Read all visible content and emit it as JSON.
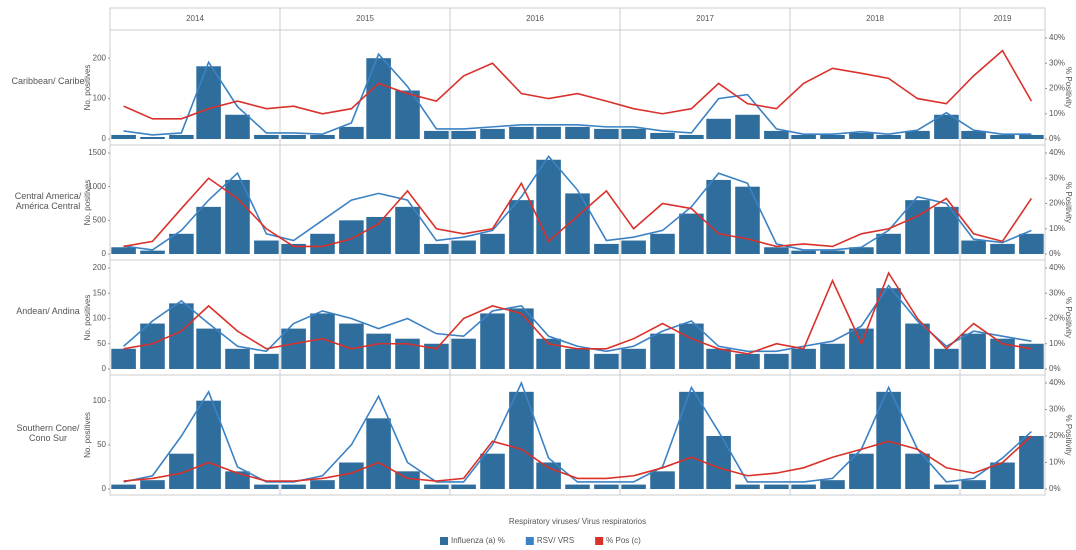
{
  "chart_data": [
    {
      "type": "combo",
      "title": "Caribbean/ Caribe",
      "ylabel": "No. positives",
      "y2label": "% Positivity",
      "xlim": [
        2014,
        2019.5
      ],
      "xticks": [
        2014,
        2015,
        2016,
        2017,
        2018,
        2019
      ],
      "x": [
        2014.08,
        2014.25,
        2014.42,
        2014.58,
        2014.75,
        2014.92,
        2015.08,
        2015.25,
        2015.42,
        2015.58,
        2015.75,
        2015.92,
        2016.08,
        2016.25,
        2016.42,
        2016.58,
        2016.75,
        2016.92,
        2017.08,
        2017.25,
        2017.42,
        2017.58,
        2017.75,
        2017.92,
        2018.08,
        2018.25,
        2018.42,
        2018.58,
        2018.75,
        2018.92,
        2019.08,
        2019.25,
        2019.42
      ],
      "ylim": [
        0,
        250
      ],
      "yticks": [
        0,
        100,
        200
      ],
      "y2lim": [
        0,
        40
      ],
      "y2ticks": [
        {
          "value": 0,
          "label": "0%"
        },
        {
          "value": 10,
          "label": "10%"
        },
        {
          "value": 20,
          "label": "20%"
        },
        {
          "value": 30,
          "label": "30%"
        },
        {
          "value": 40,
          "label": "40%"
        }
      ],
      "series": [
        {
          "type": "bar",
          "color": "#2f6d9c",
          "values": [
            10,
            5,
            10,
            180,
            60,
            10,
            10,
            10,
            30,
            200,
            120,
            20,
            20,
            25,
            30,
            30,
            30,
            25,
            25,
            15,
            10,
            50,
            60,
            20,
            10,
            10,
            15,
            10,
            20,
            60,
            20,
            10,
            10
          ]
        },
        {
          "type": "line",
          "color": "#3b82c4",
          "values": [
            20,
            10,
            15,
            190,
            80,
            15,
            15,
            12,
            40,
            210,
            130,
            25,
            25,
            30,
            35,
            35,
            35,
            30,
            30,
            20,
            15,
            100,
            110,
            25,
            12,
            12,
            18,
            12,
            22,
            65,
            22,
            12,
            12
          ]
        },
        {
          "type": "line",
          "axis": "y2",
          "color": "#d9312b",
          "values": [
            13,
            8,
            8,
            12,
            15,
            12,
            13,
            10,
            12,
            22,
            18,
            15,
            25,
            30,
            18,
            16,
            18,
            15,
            12,
            10,
            12,
            22,
            14,
            12,
            22,
            28,
            26,
            24,
            16,
            14,
            25,
            35,
            15
          ]
        }
      ]
    },
    {
      "type": "combo",
      "title": "Central America/ América Central",
      "ylabel": "No. positives",
      "y2label": "% Positivity",
      "ylim": [
        0,
        1500
      ],
      "yticks": [
        0,
        500,
        1000,
        1500
      ],
      "y2lim": [
        0,
        40
      ],
      "y2ticks": [
        {
          "value": 0,
          "label": "0%"
        },
        {
          "value": 10,
          "label": "10%"
        },
        {
          "value": 20,
          "label": "20%"
        },
        {
          "value": 30,
          "label": "30%"
        },
        {
          "value": 40,
          "label": "40%"
        }
      ],
      "series": [
        {
          "type": "bar",
          "color": "#2f6d9c",
          "values": [
            100,
            50,
            300,
            700,
            1100,
            200,
            150,
            300,
            500,
            550,
            700,
            150,
            200,
            300,
            800,
            1400,
            900,
            150,
            200,
            300,
            600,
            1100,
            1000,
            100,
            50,
            50,
            100,
            300,
            800,
            700,
            200,
            150,
            300
          ]
        },
        {
          "type": "line",
          "color": "#3b82c4",
          "values": [
            120,
            60,
            350,
            800,
            1200,
            300,
            200,
            500,
            800,
            900,
            800,
            200,
            250,
            350,
            850,
            1450,
            950,
            200,
            250,
            350,
            700,
            1200,
            1050,
            150,
            60,
            60,
            100,
            350,
            850,
            750,
            220,
            170,
            350
          ]
        },
        {
          "type": "line",
          "axis": "y2",
          "color": "#d9312b",
          "values": [
            3,
            5,
            18,
            30,
            22,
            10,
            3,
            3,
            6,
            12,
            25,
            10,
            8,
            10,
            28,
            5,
            15,
            25,
            10,
            20,
            18,
            8,
            6,
            3,
            4,
            3,
            8,
            10,
            15,
            22,
            8,
            5,
            22
          ]
        }
      ]
    },
    {
      "type": "combo",
      "title": "Andean/ Andina",
      "ylabel": "No. positives",
      "y2label": "% Positivity",
      "ylim": [
        0,
        200
      ],
      "yticks": [
        0,
        50,
        100,
        150,
        200
      ],
      "y2lim": [
        0,
        40
      ],
      "y2ticks": [
        {
          "value": 0,
          "label": "0%"
        },
        {
          "value": 10,
          "label": "10%"
        },
        {
          "value": 20,
          "label": "20%"
        },
        {
          "value": 30,
          "label": "30%"
        },
        {
          "value": 40,
          "label": "40%"
        }
      ],
      "series": [
        {
          "type": "bar",
          "color": "#2f6d9c",
          "values": [
            40,
            90,
            130,
            80,
            40,
            30,
            80,
            110,
            90,
            70,
            60,
            50,
            60,
            110,
            120,
            60,
            40,
            30,
            40,
            70,
            90,
            40,
            30,
            30,
            40,
            50,
            80,
            160,
            90,
            40,
            70,
            60,
            50
          ]
        },
        {
          "type": "line",
          "color": "#3b82c4",
          "values": [
            45,
            95,
            135,
            90,
            45,
            35,
            90,
            115,
            100,
            80,
            100,
            70,
            65,
            115,
            125,
            65,
            45,
            35,
            45,
            75,
            95,
            45,
            35,
            35,
            45,
            55,
            85,
            165,
            95,
            45,
            75,
            65,
            55
          ]
        },
        {
          "type": "line",
          "axis": "y2",
          "color": "#d9312b",
          "values": [
            8,
            10,
            15,
            25,
            15,
            8,
            10,
            12,
            8,
            10,
            10,
            8,
            20,
            25,
            22,
            10,
            8,
            8,
            12,
            18,
            12,
            8,
            6,
            10,
            8,
            35,
            10,
            38,
            20,
            8,
            18,
            10,
            8
          ]
        }
      ]
    },
    {
      "type": "combo",
      "title": "Southern Cone/ Cono Sur",
      "ylabel": "No. positives",
      "y2label": "% Positivity",
      "xlabel": "Respiratory viruses/ Virus respiratorios",
      "ylim": [
        0,
        120
      ],
      "yticks": [
        0,
        50,
        100
      ],
      "y2lim": [
        0,
        40
      ],
      "y2ticks": [
        {
          "value": 0,
          "label": "0%"
        },
        {
          "value": 10,
          "label": "10%"
        },
        {
          "value": 20,
          "label": "20%"
        },
        {
          "value": 30,
          "label": "30%"
        },
        {
          "value": 40,
          "label": "40%"
        }
      ],
      "series": [
        {
          "type": "bar",
          "name": "Influenza (a) %",
          "color": "#2f6d9c",
          "values": [
            5,
            10,
            40,
            100,
            20,
            5,
            5,
            10,
            30,
            80,
            20,
            5,
            5,
            40,
            110,
            30,
            5,
            5,
            5,
            20,
            110,
            60,
            5,
            5,
            5,
            10,
            40,
            110,
            40,
            5,
            10,
            30,
            60
          ]
        },
        {
          "type": "line",
          "name": "RSV/ VRS",
          "color": "#3b82c4",
          "values": [
            8,
            15,
            60,
            110,
            25,
            8,
            8,
            15,
            50,
            105,
            30,
            8,
            8,
            50,
            120,
            35,
            8,
            8,
            8,
            25,
            115,
            65,
            8,
            8,
            8,
            12,
            45,
            115,
            45,
            8,
            12,
            35,
            65
          ]
        },
        {
          "type": "line",
          "name": "% Pos (c)",
          "axis": "y2",
          "color": "#d9312b",
          "values": [
            3,
            4,
            6,
            10,
            6,
            3,
            3,
            4,
            6,
            10,
            4,
            3,
            4,
            18,
            15,
            8,
            4,
            4,
            5,
            8,
            12,
            8,
            5,
            6,
            8,
            12,
            15,
            18,
            15,
            8,
            6,
            10,
            20
          ]
        }
      ]
    }
  ]
}
